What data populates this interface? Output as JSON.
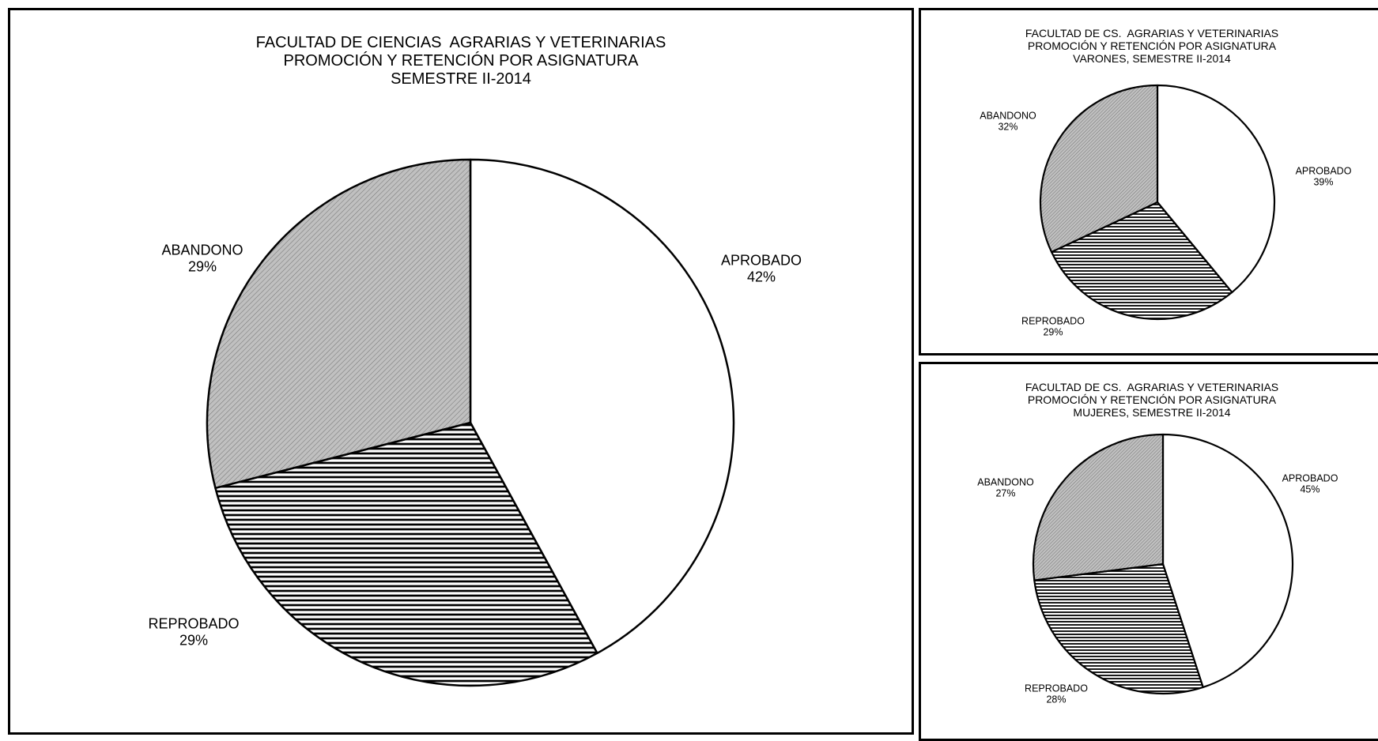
{
  "chart_data": [
    {
      "type": "pie",
      "title_lines": [
        "FACULTAD DE CIENCIAS  AGRARIAS Y VETERINARIAS",
        "PROMOCIÓN Y RETENCIÓN POR ASIGNATURA",
        "SEMESTRE II-2014"
      ],
      "slices": [
        {
          "name": "APROBADO",
          "label": "42%",
          "value": 42,
          "pattern": "none"
        },
        {
          "name": "REPROBADO",
          "label": "29%",
          "value": 29,
          "pattern": "horizontal-lines"
        },
        {
          "name": "ABANDONO",
          "label": "29%",
          "value": 29,
          "pattern": "diagonal-lines"
        }
      ]
    },
    {
      "type": "pie",
      "title_lines": [
        "FACULTAD DE CS.  AGRARIAS Y VETERINARIAS",
        "PROMOCIÓN Y RETENCIÓN POR ASIGNATURA",
        "VARONES, SEMESTRE II-2014"
      ],
      "slices": [
        {
          "name": "APROBADO",
          "label": "39%",
          "value": 39,
          "pattern": "none"
        },
        {
          "name": "REPROBADO",
          "label": "29%",
          "value": 29,
          "pattern": "horizontal-lines"
        },
        {
          "name": "ABANDONO",
          "label": "32%",
          "value": 32,
          "pattern": "diagonal-lines"
        }
      ]
    },
    {
      "type": "pie",
      "title_lines": [
        "FACULTAD DE CS.  AGRARIAS Y VETERINARIAS",
        "PROMOCIÓN Y RETENCIÓN POR ASIGNATURA",
        "MUJERES, SEMESTRE II-2014"
      ],
      "slices": [
        {
          "name": "APROBADO",
          "label": "45%",
          "value": 45,
          "pattern": "none"
        },
        {
          "name": "REPROBADO",
          "label": "28%",
          "value": 28,
          "pattern": "horizontal-lines"
        },
        {
          "name": "ABANDONO",
          "label": "27%",
          "value": 27,
          "pattern": "diagonal-lines"
        }
      ]
    }
  ],
  "colors": {
    "outline": "#000000",
    "background": "#ffffff",
    "pattern_fill": "#c0c0c0",
    "pattern_line": "#000000"
  }
}
